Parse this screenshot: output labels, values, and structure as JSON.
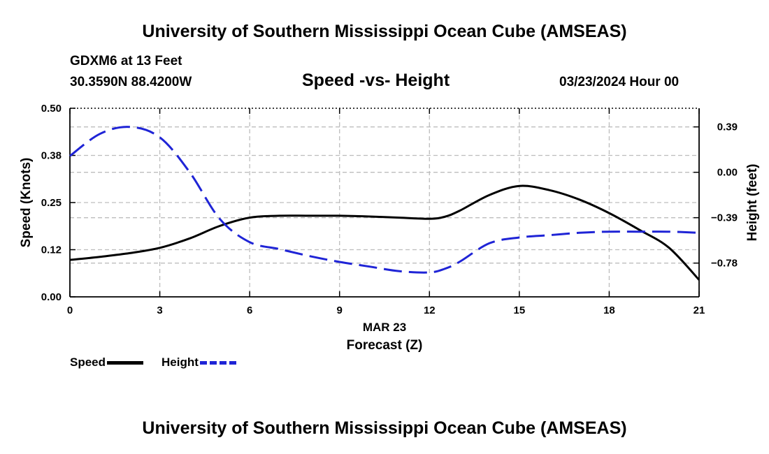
{
  "header": {
    "title": "University of Southern Mississippi Ocean Cube (AMSEAS)",
    "station": "GDXM6 at 13 Feet",
    "coords": "30.3590N  88.4200W",
    "date": "03/23/2024 Hour 00",
    "footer_title": "University of Southern Mississippi Ocean Cube (AMSEAS)"
  },
  "colors": {
    "speed": "#000000",
    "height": "#1f24d6",
    "grid": "#bdbdbd"
  },
  "chart_data": {
    "type": "line",
    "title": "Speed -vs- Height",
    "xlabel": "Forecast (Z)",
    "xlabel_date": "MAR 23",
    "ylabel": "Speed (Knots)",
    "y2label": "Height (feet)",
    "xlim": [
      0,
      21
    ],
    "ylim": [
      0,
      0.5
    ],
    "y2lim": [
      -1.07,
      0.55
    ],
    "x_ticks": [
      "0",
      "3",
      "6",
      "9",
      "12",
      "15",
      "18",
      "21"
    ],
    "x_tick_values": [
      0,
      3,
      6,
      9,
      12,
      15,
      18,
      21
    ],
    "y_ticks": [
      "0.00",
      "0.12",
      "0.25",
      "0.38",
      "0.50"
    ],
    "y_tick_values": [
      0,
      0.125,
      0.25,
      0.375,
      0.5
    ],
    "y2_ticks": [
      "0.39",
      "0.00",
      "−0.39",
      "−0.78"
    ],
    "y2_tick_values": [
      0.39,
      0,
      -0.39,
      -0.78
    ],
    "grid": true,
    "series": [
      {
        "name": "Speed",
        "axis": "left",
        "style": "solid",
        "x": [
          0,
          1,
          2,
          3,
          4,
          5,
          6,
          7,
          8,
          9,
          10,
          11,
          12,
          12.5,
          13,
          14,
          15,
          16,
          17,
          18,
          19,
          20,
          21
        ],
        "values": [
          0.098,
          0.106,
          0.116,
          0.13,
          0.155,
          0.188,
          0.21,
          0.215,
          0.215,
          0.215,
          0.213,
          0.21,
          0.207,
          0.212,
          0.228,
          0.27,
          0.294,
          0.283,
          0.258,
          0.222,
          0.178,
          0.13,
          0.045
        ]
      },
      {
        "name": "Height",
        "axis": "right",
        "style": "dashed",
        "x": [
          0,
          1,
          2,
          3,
          4,
          5,
          6,
          7,
          8,
          9,
          10,
          11,
          12,
          12.5,
          13,
          14,
          15,
          16,
          17,
          18,
          19,
          20,
          21
        ],
        "values": [
          0.14,
          0.33,
          0.39,
          0.3,
          0.0,
          -0.4,
          -0.6,
          -0.66,
          -0.72,
          -0.77,
          -0.81,
          -0.85,
          -0.86,
          -0.83,
          -0.77,
          -0.61,
          -0.56,
          -0.54,
          -0.52,
          -0.51,
          -0.51,
          -0.51,
          -0.52
        ]
      }
    ]
  },
  "legend": {
    "speed_label": "Speed",
    "height_label": "Height"
  }
}
